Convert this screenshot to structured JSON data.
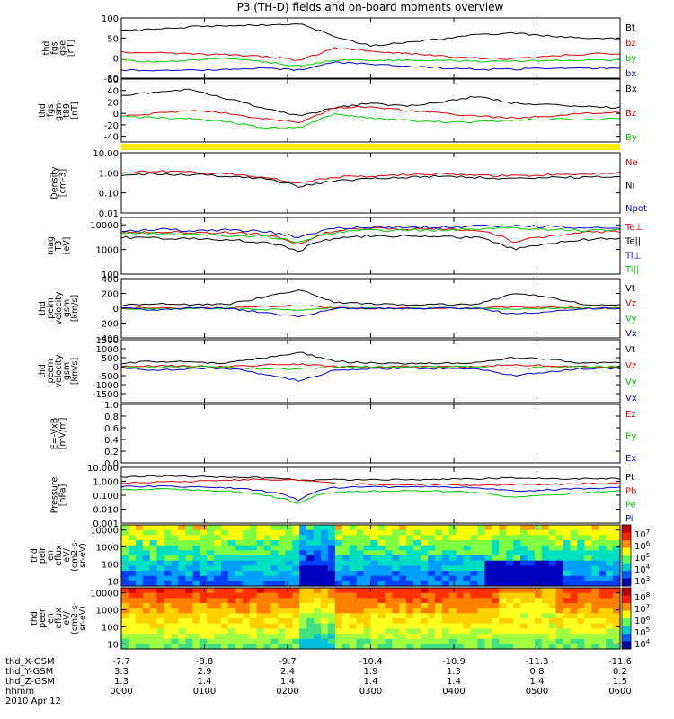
{
  "title": "P3 (TH-D) fields and on-board moments overview",
  "colors": {
    "black": "#000000",
    "red": "#e00000",
    "green": "#00cc00",
    "blue": "#0000d0",
    "yellow": "#ffee00"
  },
  "chart_data": [
    {
      "type": "line",
      "ylabel": [
        "thd",
        "fgs",
        "gse",
        "[nT]"
      ],
      "ylim": [
        -50,
        100
      ],
      "yscale": "linear",
      "yticks": [
        "100",
        "50",
        "0",
        "-50"
      ],
      "series": [
        {
          "name": "Bt",
          "color": "#000000",
          "values": [
            68,
            72,
            78,
            80,
            82,
            85,
            55,
            30,
            40,
            48,
            58,
            62,
            55,
            50,
            48
          ]
        },
        {
          "name": "bz",
          "color": "#e00000",
          "values": [
            15,
            14,
            10,
            8,
            4,
            -5,
            25,
            18,
            12,
            5,
            0,
            -2,
            5,
            10,
            12
          ]
        },
        {
          "name": "by",
          "color": "#00cc00",
          "values": [
            -5,
            -10,
            -5,
            0,
            -10,
            -20,
            -5,
            -5,
            -5,
            -5,
            -8,
            -8,
            -5,
            -5,
            -5
          ]
        },
        {
          "name": "bx",
          "color": "#0000d0",
          "values": [
            -30,
            -32,
            -30,
            -28,
            -25,
            -30,
            -10,
            -15,
            -20,
            -25,
            -28,
            -28,
            -25,
            -25,
            -25
          ]
        }
      ]
    },
    {
      "type": "line",
      "ylabel": [
        "thd",
        "fgs",
        "gsm-",
        "t89",
        "[nT]"
      ],
      "ylim": [
        -50,
        60
      ],
      "yscale": "linear",
      "yticks": [
        "60",
        "40",
        "20",
        "0",
        "-20",
        "-40"
      ],
      "series": [
        {
          "name": "Bx",
          "color": "#000000",
          "values": [
            30,
            38,
            42,
            25,
            10,
            -5,
            10,
            18,
            12,
            20,
            30,
            18,
            15,
            12,
            10
          ]
        },
        {
          "name": "Bz",
          "color": "#e00000",
          "values": [
            -5,
            0,
            5,
            0,
            -10,
            -15,
            10,
            12,
            5,
            0,
            -5,
            -8,
            -5,
            0,
            2
          ]
        },
        {
          "name": "By",
          "color": "#00cc00",
          "values": [
            -5,
            -8,
            -10,
            -15,
            -25,
            -25,
            0,
            -8,
            -12,
            -15,
            -15,
            -12,
            -10,
            -10,
            -10
          ]
        }
      ]
    },
    {
      "type": "line",
      "ylabel": [
        "Density",
        "[cm-3]"
      ],
      "ylim": [
        0.01,
        10
      ],
      "yscale": "log",
      "yticks": [
        "10.00",
        "1.00",
        "0.10",
        "0.01"
      ],
      "series": [
        {
          "name": "Ne",
          "color": "#e00000",
          "values": [
            1.0,
            1.2,
            1.1,
            0.9,
            0.6,
            0.3,
            0.6,
            0.7,
            0.8,
            0.9,
            0.8,
            0.7,
            0.8,
            0.9,
            1.0
          ]
        },
        {
          "name": "Ni",
          "color": "#000000",
          "values": [
            0.8,
            0.9,
            0.8,
            0.7,
            0.5,
            0.2,
            0.4,
            0.5,
            0.6,
            0.7,
            0.6,
            0.5,
            0.6,
            0.6,
            0.7
          ]
        },
        {
          "name": "Npot",
          "color": "#0000d0",
          "values": []
        }
      ]
    },
    {
      "type": "line",
      "ylabel": [
        "mag",
        "T3",
        "[eV]"
      ],
      "ylim": [
        100,
        20000
      ],
      "yscale": "log",
      "yticks": [
        "10000",
        "1000",
        "100"
      ],
      "series": [
        {
          "name": "Te⊥",
          "color": "#e00000",
          "values": [
            5000,
            5200,
            5000,
            4800,
            4000,
            1500,
            6000,
            7000,
            7000,
            7000,
            6000,
            2000,
            3500,
            5000,
            5500
          ]
        },
        {
          "name": "Te||",
          "color": "#000000",
          "values": [
            3000,
            3000,
            2800,
            2500,
            2000,
            800,
            3000,
            3500,
            3500,
            3500,
            3000,
            1000,
            1800,
            2500,
            2800
          ]
        },
        {
          "name": "Ti⊥",
          "color": "#0000d0",
          "values": [
            6000,
            6500,
            6000,
            6000,
            5500,
            3000,
            7000,
            8000,
            8000,
            8000,
            9000,
            9000,
            8500,
            8000,
            8000
          ]
        },
        {
          "name": "Ti||",
          "color": "#00cc00",
          "values": [
            4500,
            4500,
            4000,
            3800,
            3500,
            2000,
            5000,
            6000,
            6000,
            6000,
            7000,
            7500,
            6500,
            6000,
            6000
          ]
        }
      ]
    },
    {
      "type": "line",
      "ylabel": [
        "thd",
        "peim",
        "velocity",
        "gsm",
        "[km/s]"
      ],
      "ylim": [
        -400,
        400
      ],
      "yscale": "linear",
      "yticks": [
        "400",
        "200",
        "0",
        "-200",
        "-400"
      ],
      "series": [
        {
          "name": "Vt",
          "color": "#000000",
          "values": [
            40,
            60,
            50,
            50,
            150,
            250,
            80,
            60,
            50,
            50,
            50,
            200,
            150,
            50,
            40
          ]
        },
        {
          "name": "Vz",
          "color": "#e00000",
          "values": [
            0,
            10,
            0,
            0,
            30,
            40,
            0,
            0,
            0,
            0,
            0,
            20,
            10,
            0,
            0
          ]
        },
        {
          "name": "Vy",
          "color": "#00cc00",
          "values": [
            0,
            -10,
            0,
            0,
            -20,
            -20,
            0,
            0,
            0,
            0,
            0,
            -10,
            0,
            0,
            0
          ]
        },
        {
          "name": "Vx",
          "color": "#0000d0",
          "values": [
            0,
            -20,
            0,
            0,
            -60,
            -120,
            0,
            0,
            0,
            0,
            0,
            -80,
            -40,
            0,
            0
          ]
        }
      ]
    },
    {
      "type": "line",
      "ylabel": [
        "thd",
        "peem",
        "velocity",
        "gsm",
        "[km/s]"
      ],
      "ylim": [
        -2000,
        1500
      ],
      "yscale": "linear",
      "yticks": [
        "1500",
        "1000",
        "500",
        "0",
        "-500",
        "-1000",
        "-1500"
      ],
      "series": [
        {
          "name": "Vt",
          "color": "#000000",
          "values": [
            200,
            300,
            250,
            200,
            500,
            800,
            300,
            200,
            200,
            200,
            200,
            500,
            400,
            200,
            200
          ]
        },
        {
          "name": "Vz",
          "color": "#e00000",
          "values": [
            0,
            50,
            0,
            0,
            100,
            150,
            0,
            0,
            0,
            0,
            0,
            100,
            50,
            0,
            0
          ]
        },
        {
          "name": "Vy",
          "color": "#00cc00",
          "values": [
            0,
            -50,
            0,
            0,
            -100,
            -150,
            0,
            0,
            0,
            0,
            0,
            -100,
            -50,
            0,
            0
          ]
        },
        {
          "name": "Vx",
          "color": "#0000d0",
          "values": [
            -50,
            -200,
            -100,
            -100,
            -400,
            -800,
            -200,
            -100,
            -100,
            -100,
            -100,
            -500,
            -300,
            -100,
            -100
          ]
        }
      ]
    },
    {
      "type": "line",
      "ylabel": [
        "E=-VxB",
        "[mV/m]"
      ],
      "ylim": [
        0,
        1
      ],
      "yscale": "linear",
      "yticks": [
        "1.0",
        "0.8",
        "0.6",
        "0.4",
        "0.2",
        "0.0"
      ],
      "series": [
        {
          "name": "Ez",
          "color": "#e00000",
          "values": []
        },
        {
          "name": "Ey",
          "color": "#00cc00",
          "values": []
        },
        {
          "name": "Ex",
          "color": "#0000d0",
          "values": []
        }
      ]
    },
    {
      "type": "line",
      "ylabel": [
        "Pressure",
        "[nPa]"
      ],
      "ylim": [
        0.001,
        10
      ],
      "yscale": "log",
      "yticks": [
        "10.000",
        "1.000",
        "0.100",
        "0.010",
        "0.001"
      ],
      "series": [
        {
          "name": "Pt",
          "color": "#000000",
          "values": [
            2.0,
            2.5,
            2.2,
            2.0,
            1.8,
            1.2,
            1.3,
            1.3,
            1.3,
            1.4,
            1.5,
            1.8,
            1.6,
            1.5,
            1.6
          ]
        },
        {
          "name": "Pb",
          "color": "#e00000",
          "values": [
            0.8,
            0.9,
            1.0,
            1.2,
            1.4,
            1.3,
            0.7,
            0.6,
            0.6,
            0.6,
            0.5,
            0.6,
            0.6,
            0.7,
            0.7
          ]
        },
        {
          "name": "Pe",
          "color": "#00cc00",
          "values": [
            0.25,
            0.28,
            0.25,
            0.2,
            0.1,
            0.02,
            0.18,
            0.2,
            0.2,
            0.2,
            0.15,
            0.07,
            0.1,
            0.15,
            0.2
          ]
        },
        {
          "name": "Pi",
          "color": "#0000d0",
          "values": [
            0.4,
            0.45,
            0.4,
            0.35,
            0.2,
            0.04,
            0.35,
            0.4,
            0.4,
            0.4,
            0.35,
            0.2,
            0.25,
            0.3,
            0.35
          ]
        }
      ]
    },
    {
      "type": "heatmap",
      "ylabel": [
        "thd",
        "peir",
        "en",
        "eflux",
        "eV/",
        "(cm2-s-",
        "sr-eV)"
      ],
      "ylim": [
        5,
        20000
      ],
      "yscale": "log",
      "yticks": [
        "10000",
        "1000",
        "100",
        "10"
      ],
      "colorbar_ticks": [
        "10^7",
        "10^6",
        "10^5",
        "10^4",
        "10^3"
      ]
    },
    {
      "type": "heatmap",
      "ylabel": [
        "thd",
        "peer",
        "en",
        "eflux",
        "eV/",
        "(cm2-s-",
        "sr-eV)"
      ],
      "ylim": [
        5,
        20000
      ],
      "yscale": "log",
      "yticks": [
        "10000",
        "1000",
        "100",
        "10"
      ],
      "colorbar_ticks": [
        "10^8",
        "10^7",
        "10^6",
        "10^5",
        "10^4"
      ]
    }
  ],
  "xaxis": {
    "rows": [
      {
        "label": "thd_X-GSM",
        "values": [
          "-7.7",
          "-8.8",
          "-9.7",
          "-10.4",
          "-10.9",
          "-11.3",
          "-11.6"
        ]
      },
      {
        "label": "thd_Y-GSM",
        "values": [
          "3.3",
          "2.9",
          "2.4",
          "1.9",
          "1.3",
          "0.8",
          "0.2"
        ]
      },
      {
        "label": "thd_Z-GSM",
        "values": [
          "1.3",
          "1.4",
          "1.4",
          "1.4",
          "1.4",
          "1.4",
          "1.5"
        ]
      },
      {
        "label": "hhmm",
        "values": [
          "0000",
          "0100",
          "0200",
          "0300",
          "0400",
          "0500",
          "0600"
        ]
      }
    ],
    "date": "2010 Apr 12"
  }
}
